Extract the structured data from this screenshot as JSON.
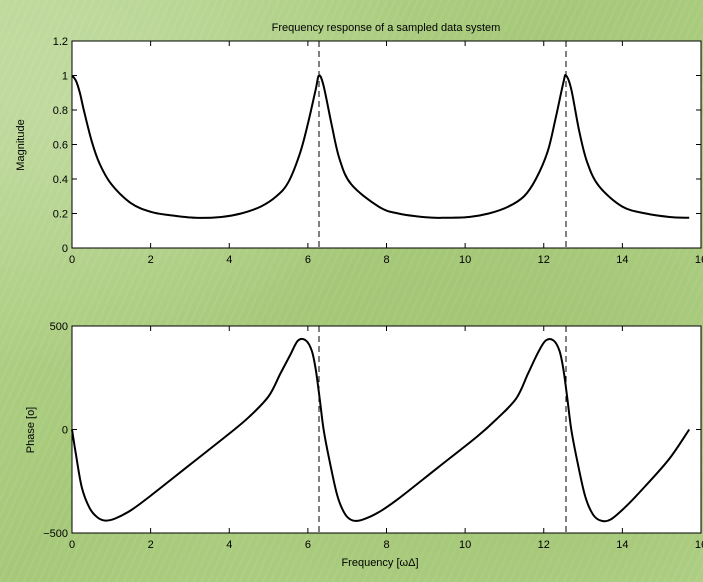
{
  "chart_data": [
    {
      "type": "line",
      "title": "Frequency response of a sampled data system",
      "ylabel": "Magnitude",
      "xlabel": "",
      "xlim": [
        0,
        16
      ],
      "ylim": [
        0,
        1.2
      ],
      "x_ticks": [
        0,
        2,
        4,
        6,
        8,
        10,
        12,
        14,
        16
      ],
      "x_tick_labels": [
        "0",
        "2",
        "4",
        "6",
        "8",
        "10",
        "12",
        "14",
        "16"
      ],
      "y_ticks": [
        0,
        0.2,
        0.4,
        0.6,
        0.8,
        1,
        1.2
      ],
      "y_tick_labels": [
        "0",
        "0.2",
        "0.4",
        "0.6",
        "0.8",
        "1",
        "1.2"
      ],
      "vlines": [
        6.283,
        12.566
      ],
      "grid": false,
      "line_color": "#000000",
      "series": [
        {
          "x": [
            0,
            0.1,
            0.2,
            0.3,
            0.5,
            0.7,
            1.0,
            1.5,
            2.0,
            2.5,
            3.14,
            3.8,
            4.3,
            4.8,
            5.2,
            5.5,
            5.8,
            6.0,
            6.2,
            6.283,
            6.4,
            6.6,
            6.8,
            7.1,
            7.8,
            8.3,
            9.0,
            9.42,
            10.1,
            10.6,
            11.1,
            11.5,
            11.8,
            12.1,
            12.3,
            12.5,
            12.566,
            12.7,
            12.9,
            13.1,
            13.4,
            14.0,
            14.6,
            15.2,
            15.7
          ],
          "y": [
            1.0,
            0.97,
            0.9,
            0.8,
            0.62,
            0.49,
            0.37,
            0.26,
            0.21,
            0.19,
            0.175,
            0.18,
            0.2,
            0.24,
            0.3,
            0.38,
            0.55,
            0.72,
            0.92,
            1.0,
            0.94,
            0.72,
            0.52,
            0.37,
            0.24,
            0.2,
            0.178,
            0.175,
            0.18,
            0.2,
            0.24,
            0.3,
            0.4,
            0.56,
            0.75,
            0.96,
            1.0,
            0.92,
            0.68,
            0.5,
            0.36,
            0.24,
            0.2,
            0.18,
            0.175
          ]
        }
      ]
    },
    {
      "type": "line",
      "title": "",
      "ylabel": "Phase [o]",
      "xlabel": "Frequency [ωΔ]",
      "xlim": [
        0,
        16
      ],
      "ylim": [
        -500,
        500
      ],
      "x_ticks": [
        0,
        2,
        4,
        6,
        8,
        10,
        12,
        14,
        16
      ],
      "x_tick_labels": [
        "0",
        "2",
        "4",
        "6",
        "8",
        "10",
        "12",
        "14",
        "16"
      ],
      "y_ticks": [
        -500,
        0,
        500
      ],
      "y_tick_labels": [
        "−500",
        "0",
        "500"
      ],
      "vlines": [
        6.283,
        12.566
      ],
      "grid": false,
      "line_color": "#000000",
      "series": [
        {
          "x": [
            0,
            0.1,
            0.25,
            0.45,
            0.65,
            0.85,
            1.1,
            1.5,
            2.0,
            3.0,
            4.0,
            4.5,
            5.0,
            5.3,
            5.55,
            5.75,
            5.95,
            6.1,
            6.2,
            6.3,
            6.4,
            6.55,
            6.75,
            6.95,
            7.15,
            7.4,
            7.8,
            8.3,
            9.3,
            10.3,
            10.8,
            11.3,
            11.6,
            11.85,
            12.05,
            12.25,
            12.4,
            12.5,
            12.6,
            12.7,
            12.85,
            13.05,
            13.25,
            13.45,
            13.7,
            14.1,
            14.6,
            15.2,
            15.7
          ],
          "y": [
            0,
            -120,
            -280,
            -380,
            -425,
            -440,
            -430,
            -390,
            -320,
            -170,
            -20,
            60,
            160,
            270,
            360,
            430,
            430,
            380,
            290,
            150,
            0,
            -150,
            -320,
            -410,
            -440,
            -435,
            -400,
            -335,
            -185,
            -35,
            50,
            150,
            270,
            370,
            430,
            430,
            380,
            290,
            150,
            0,
            -150,
            -320,
            -410,
            -440,
            -435,
            -370,
            -270,
            -140,
            0
          ]
        }
      ]
    }
  ]
}
